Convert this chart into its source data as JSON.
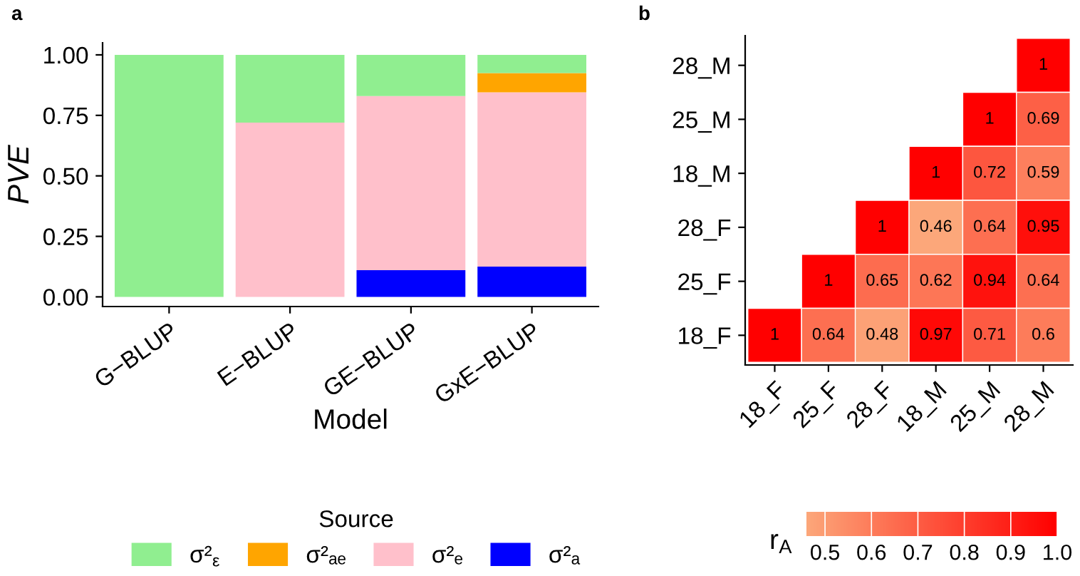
{
  "chart_data": [
    {
      "type": "bar",
      "stacked": true,
      "xlabel": "Model",
      "ylabel": "PVE",
      "legend_title": "Source",
      "legend": "bottom",
      "annotations": [
        "a"
      ],
      "categories": [
        "G−BLUP",
        "E−BLUP",
        "GE−BLUP",
        "GxE−BLUP"
      ],
      "ylim": [
        -0.04,
        1.05
      ],
      "yticks": [
        {
          "value": 0,
          "label": "0.00"
        },
        {
          "value": 0.25,
          "label": "0.25"
        },
        {
          "value": 0.5,
          "label": "0.50"
        },
        {
          "value": 0.75,
          "label": "0.75"
        },
        {
          "value": 1,
          "label": "1.00"
        }
      ],
      "series": [
        {
          "name": "σ²ₐ",
          "color": "#0000ff",
          "values": [
            0,
            0,
            0.11,
            0.125
          ]
        },
        {
          "name": "σ²ₑ",
          "color": "#ffc0cb",
          "values": [
            0,
            0.72,
            0.72,
            0.72
          ]
        },
        {
          "name": "σ²ₐₑ",
          "color": "#ffa500",
          "values": [
            0,
            0,
            0,
            0.08
          ]
        },
        {
          "name": "σ²$_{ε}$",
          "color": "#90ee90",
          "values": [
            1,
            0.28,
            0.17,
            0.075
          ]
        }
      ]
    },
    {
      "type": "heatmap",
      "annotations": [
        "b"
      ],
      "clabel": "r$_{A}$",
      "data_labels": true,
      "categories": [
        "18_F",
        "25_F",
        "28_F",
        "18_M",
        "25_M",
        "28_M"
      ],
      "y_categories": [
        "28_M",
        "25_M",
        "18_M",
        "28_F",
        "25_F",
        "18_F"
      ],
      "cells": [
        [
          null,
          null,
          null,
          null,
          null,
          1
        ],
        [
          null,
          null,
          null,
          null,
          1,
          0.69
        ],
        [
          null,
          null,
          null,
          1,
          0.72,
          0.59
        ],
        [
          null,
          null,
          1,
          0.46,
          0.64,
          0.95
        ],
        [
          null,
          1,
          0.65,
          0.62,
          0.94,
          0.64
        ],
        [
          1,
          0.64,
          0.48,
          0.97,
          0.71,
          0.6
        ]
      ],
      "clim": [
        0.46,
        1.0
      ],
      "cticks": [
        {
          "value": 0.5,
          "label": "0.5"
        },
        {
          "value": 0.6,
          "label": "0.6"
        },
        {
          "value": 0.7,
          "label": "0.7"
        },
        {
          "value": 0.8,
          "label": "0.8"
        },
        {
          "value": 0.9,
          "label": "0.9"
        },
        {
          "value": 1.0,
          "label": "1.0"
        }
      ]
    }
  ]
}
